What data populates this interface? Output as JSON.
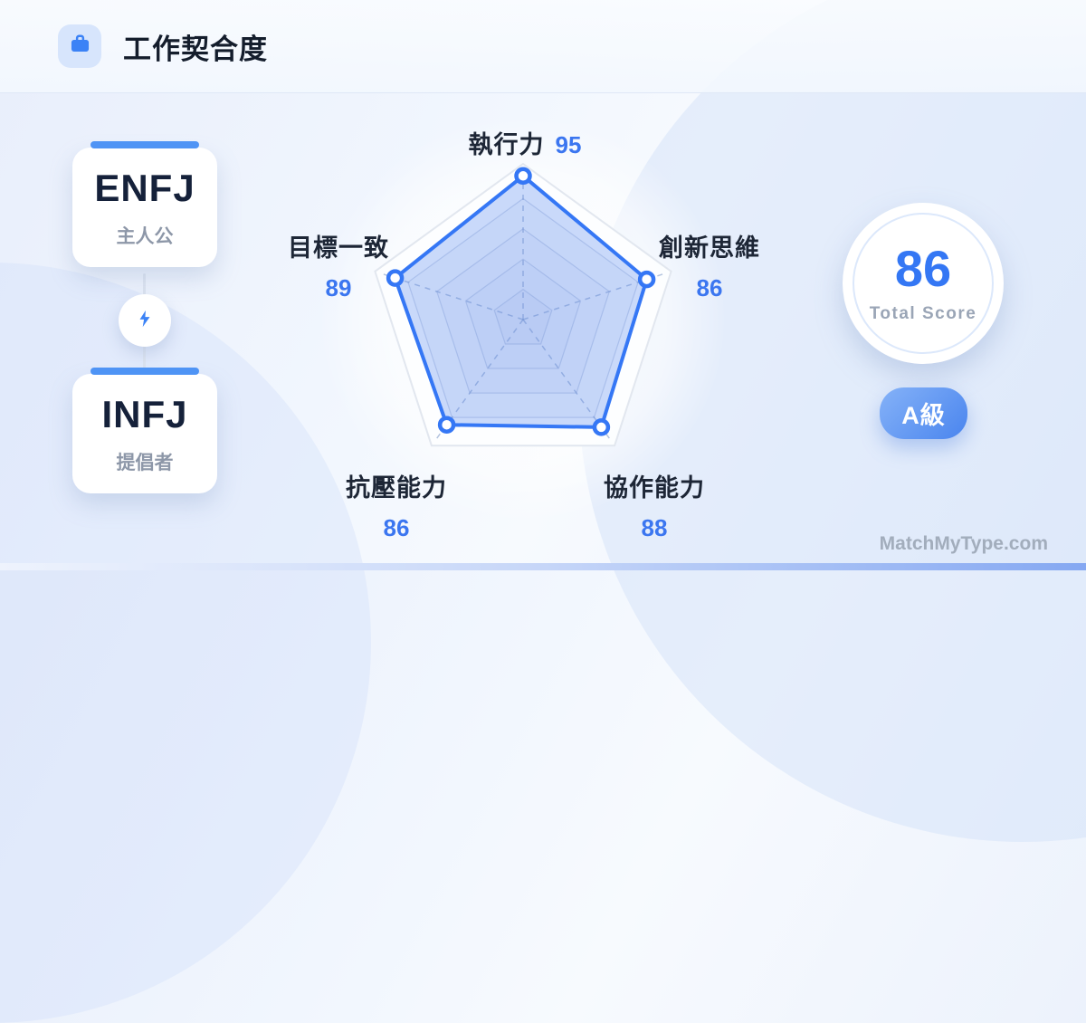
{
  "header": {
    "title": "工作契合度",
    "icon": "briefcase-icon"
  },
  "left_panel": {
    "top_card": {
      "type": "ENFJ",
      "nickname": "主人公"
    },
    "connector_icon": "lightning-bolt-icon",
    "bottom_card": {
      "type": "INFJ",
      "nickname": "提倡者"
    }
  },
  "chart_data": {
    "type": "radar",
    "title": "工作契合度",
    "categories": [
      "執行力",
      "創新思維",
      "協作能力",
      "抗壓能力",
      "目標一致"
    ],
    "values": [
      95,
      86,
      88,
      86,
      89
    ],
    "max": 100,
    "rings": 5,
    "axes_order": "clockwise-from-top",
    "grid": "pentagon rings with dashed radial axes",
    "legend_position": "none",
    "series_color": "#3577f5",
    "fill_color": "rgba(84,132,240,0.30)"
  },
  "score_panel": {
    "total_score": "86",
    "total_score_label": "Total Score",
    "grade": "A級"
  },
  "watermark": "MatchMyType.com",
  "colors": {
    "accent_blue": "#3577f5",
    "value_blue": "#3b76f0",
    "label_dark": "#1d2636",
    "muted_gray": "#9aa5b6",
    "card_bar_blue": "#4f94f5",
    "badge_gradient_start": "#85b2f8",
    "badge_gradient_end": "#4a85ee"
  }
}
